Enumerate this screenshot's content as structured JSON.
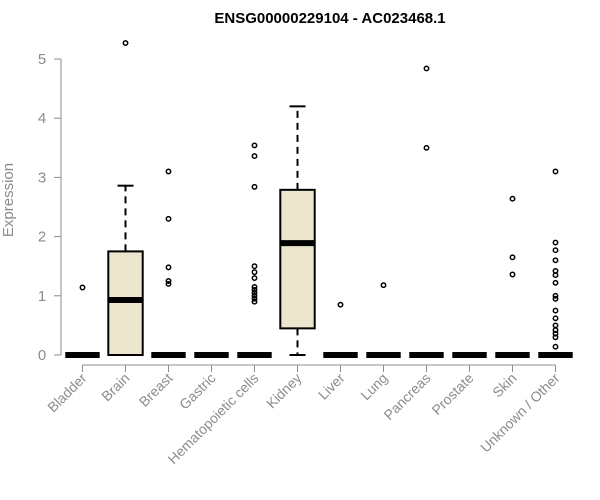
{
  "chart_data": {
    "type": "boxplot",
    "title": "ENSG00000229104 - AC023468.1",
    "xlabel": "",
    "ylabel": "Expression",
    "ylim": [
      0,
      5
    ],
    "yticks": [
      0,
      1,
      2,
      3,
      4,
      5
    ],
    "grid": false,
    "legend": "none",
    "box_color": "#ede6cf",
    "categories": [
      "Bladder",
      "Brain",
      "Breast",
      "Gastric",
      "Hematopoietic cells",
      "Kidney",
      "Liver",
      "Lung",
      "Pancreas",
      "Prostate",
      "Skin",
      "Unknown / Other"
    ],
    "boxes": [
      {
        "q1": 0,
        "median": 0,
        "q3": 0,
        "whisker_low": 0,
        "whisker_high": 0,
        "outliers": [
          1.14
        ]
      },
      {
        "q1": 0,
        "median": 0.93,
        "q3": 1.75,
        "whisker_low": 0,
        "whisker_high": 2.86,
        "outliers": [
          5.27
        ]
      },
      {
        "q1": 0,
        "median": 0,
        "q3": 0,
        "whisker_low": 0,
        "whisker_high": 0,
        "outliers": [
          3.1,
          2.3,
          1.48,
          1.25,
          1.2
        ]
      },
      {
        "q1": 0,
        "median": 0,
        "q3": 0,
        "whisker_low": 0,
        "whisker_high": 0,
        "outliers": []
      },
      {
        "q1": 0,
        "median": 0,
        "q3": 0,
        "whisker_low": 0,
        "whisker_high": 0,
        "outliers": [
          3.54,
          3.36,
          2.84,
          1.5,
          1.4,
          1.3,
          1.15,
          1.1,
          1.05,
          1.0,
          0.95,
          0.9
        ]
      },
      {
        "q1": 0.45,
        "median": 1.89,
        "q3": 2.79,
        "whisker_low": 0,
        "whisker_high": 4.2,
        "outliers": []
      },
      {
        "q1": 0,
        "median": 0,
        "q3": 0,
        "whisker_low": 0,
        "whisker_high": 0,
        "outliers": [
          0.85
        ]
      },
      {
        "q1": 0,
        "median": 0,
        "q3": 0,
        "whisker_low": 0,
        "whisker_high": 0,
        "outliers": [
          1.18
        ]
      },
      {
        "q1": 0,
        "median": 0,
        "q3": 0,
        "whisker_low": 0,
        "whisker_high": 0,
        "outliers": [
          4.84,
          3.5
        ]
      },
      {
        "q1": 0,
        "median": 0,
        "q3": 0,
        "whisker_low": 0,
        "whisker_high": 0,
        "outliers": []
      },
      {
        "q1": 0,
        "median": 0,
        "q3": 0,
        "whisker_low": 0,
        "whisker_high": 0,
        "outliers": [
          2.64,
          1.65,
          1.36
        ]
      },
      {
        "q1": 0,
        "median": 0,
        "q3": 0,
        "whisker_low": 0,
        "whisker_high": 0,
        "outliers": [
          3.1,
          1.9,
          1.77,
          1.6,
          1.42,
          1.35,
          1.22,
          1.0,
          0.95,
          0.75,
          0.62,
          0.5,
          0.42,
          0.36,
          0.3,
          0.14
        ]
      }
    ]
  }
}
